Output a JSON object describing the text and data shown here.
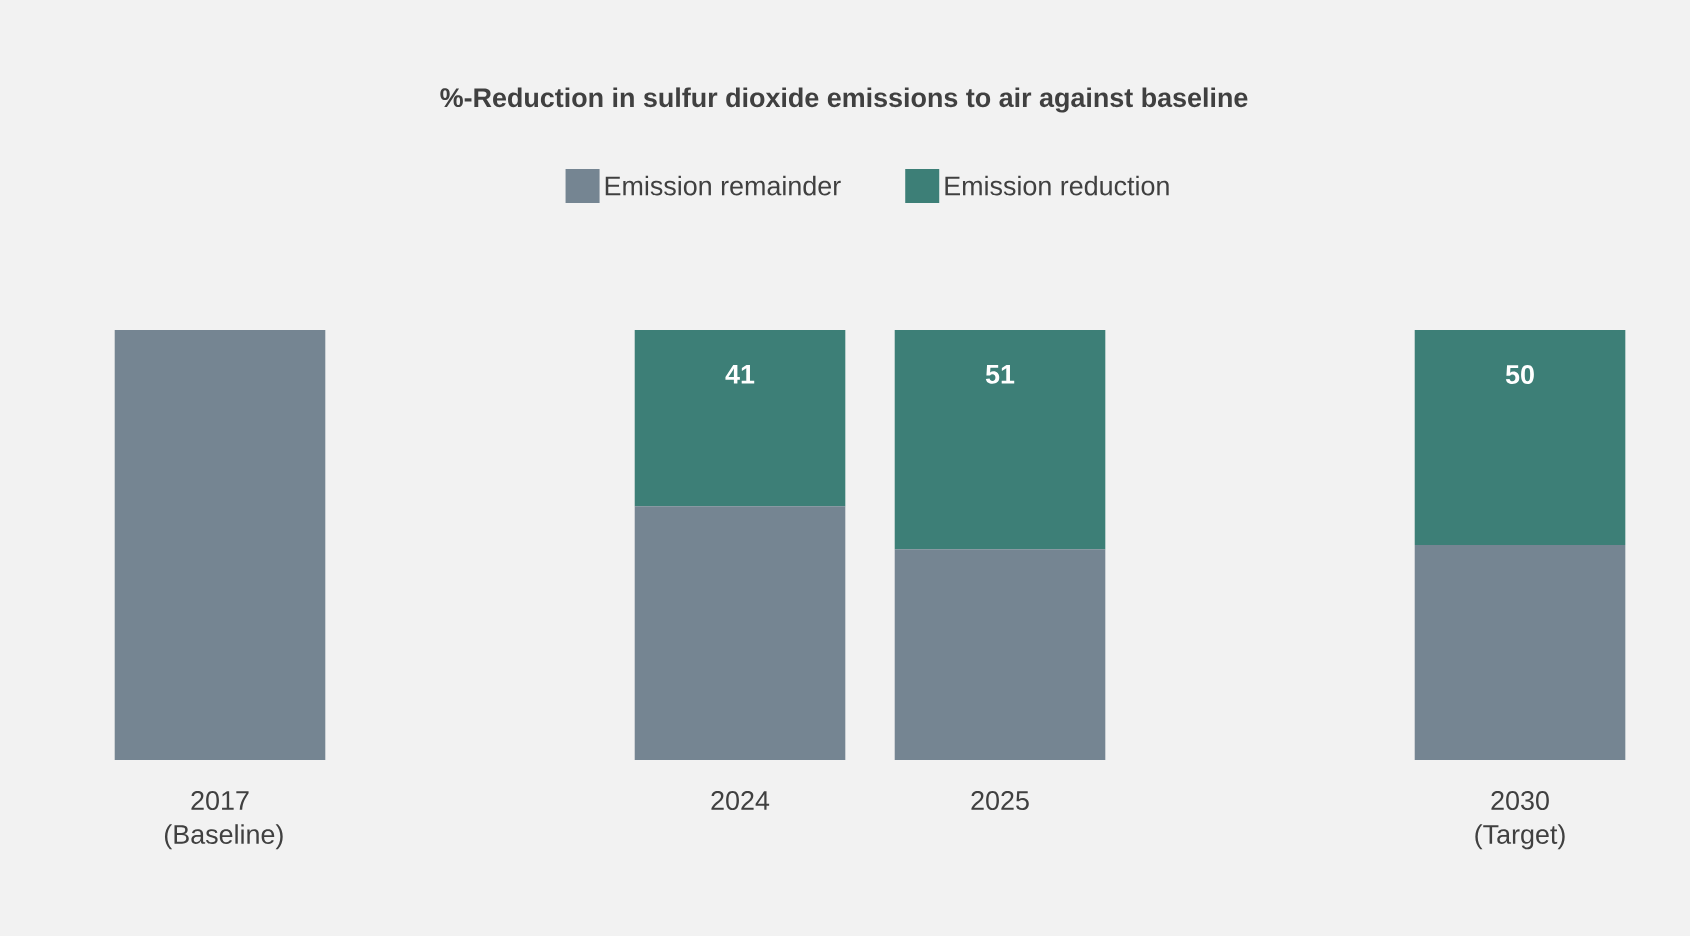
{
  "chart_data": {
    "type": "bar",
    "title": "%-Reduction in sulfur dioxide emissions to air against baseline",
    "categories": [
      "2017 (Baseline)",
      null,
      "2024",
      "2025",
      null,
      "2030 (Target)"
    ],
    "stacked": true,
    "ylim": [
      0,
      100
    ],
    "legend": "top",
    "series": [
      {
        "name": "Emission remainder",
        "color": "#758592",
        "values": [
          100,
          null,
          59,
          49,
          null,
          50
        ]
      },
      {
        "name": "Emission reduction",
        "color": "#3d7f77",
        "values": [
          0,
          null,
          41,
          51,
          null,
          50
        ],
        "value_labels": [
          null,
          null,
          "41",
          "51",
          null,
          "50"
        ]
      }
    ]
  }
}
